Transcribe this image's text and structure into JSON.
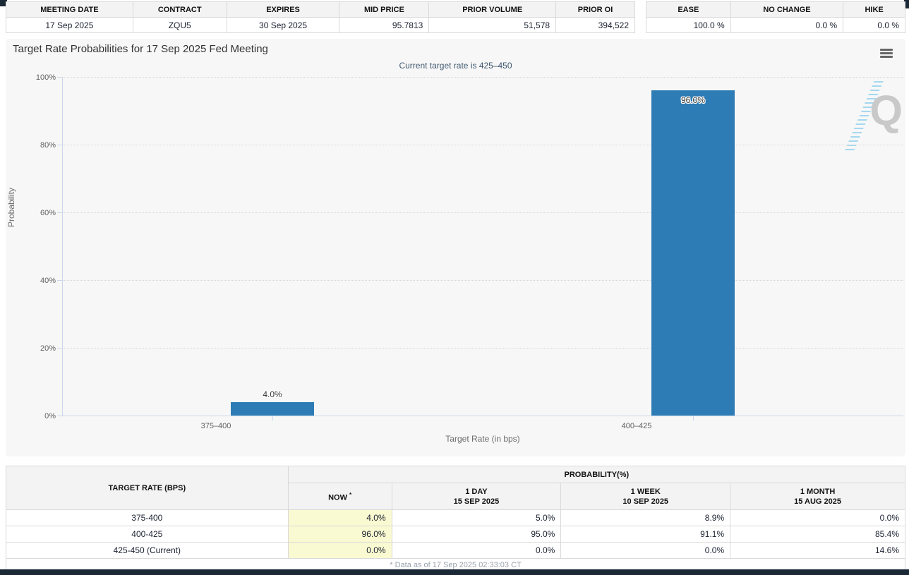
{
  "top_left_table": {
    "headers": [
      "MEETING DATE",
      "CONTRACT",
      "EXPIRES",
      "MID PRICE",
      "PRIOR VOLUME",
      "PRIOR OI"
    ],
    "row": [
      "17 Sep 2025",
      "ZQU5",
      "30 Sep 2025",
      "95.7813",
      "51,578",
      "394,522"
    ]
  },
  "top_right_table": {
    "headers": [
      "EASE",
      "NO CHANGE",
      "HIKE"
    ],
    "row": [
      "100.0 %",
      "0.0 %",
      "0.0 %"
    ]
  },
  "chart_data": {
    "type": "bar",
    "title": "Target Rate Probabilities for 17 Sep 2025 Fed Meeting",
    "subtitle": "Current target rate is 425–450",
    "categories": [
      "375–400",
      "400–425"
    ],
    "values": [
      4.0,
      96.0
    ],
    "data_labels": [
      "4.0%",
      "96.0%"
    ],
    "xlabel": "Target Rate (in bps)",
    "ylabel": "Probability",
    "ylim": [
      0,
      100
    ],
    "yticks": [
      "0%",
      "20%",
      "40%",
      "60%",
      "80%",
      "100%"
    ],
    "grid": "horizontal dotted",
    "legend": "none",
    "bar_color": "#2d7cb5",
    "watermark": "Q"
  },
  "bottom_table": {
    "rate_header": "TARGET RATE (BPS)",
    "group_header": "PROBABILITY(%)",
    "col_now": "NOW",
    "col_now_sup": "*",
    "col_day_line1": "1 DAY",
    "col_day_line2": "15 SEP 2025",
    "col_week_line1": "1 WEEK",
    "col_week_line2": "10 SEP 2025",
    "col_month_line1": "1 MONTH",
    "col_month_line2": "15 AUG 2025",
    "rows": [
      {
        "rate": "375-400",
        "now": "4.0%",
        "day": "5.0%",
        "week": "8.9%",
        "month": "0.0%"
      },
      {
        "rate": "400-425",
        "now": "96.0%",
        "day": "95.0%",
        "week": "91.1%",
        "month": "85.4%"
      },
      {
        "rate": "425-450 (Current)",
        "now": "0.0%",
        "day": "0.0%",
        "week": "0.0%",
        "month": "14.6%"
      }
    ],
    "footnote": "* Data as of 17 Sep 2025 02:33:03 CT"
  }
}
